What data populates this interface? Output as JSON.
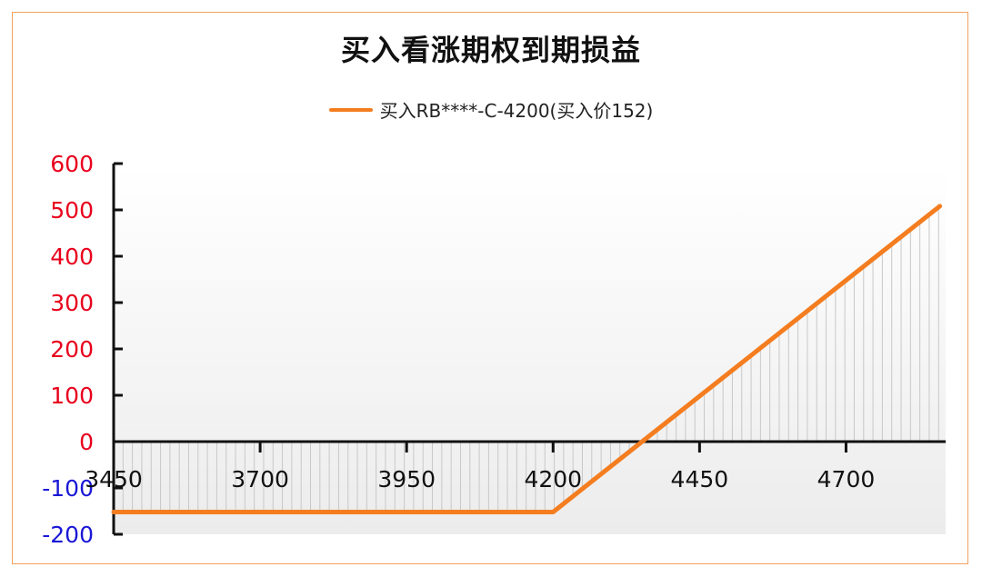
{
  "title": "买入看涨期权到期损益",
  "legend": {
    "label": "买入RB****-C-4200(买入价152)"
  },
  "colors": {
    "line": "#f47d20",
    "frame": "#f2a25f",
    "positive_tick": "#e8001c",
    "negative_tick": "#1a17d6",
    "hatch": "#c8c8c8"
  },
  "chart_data": {
    "type": "line",
    "title": "买入看涨期权到期损益",
    "xlabel": "",
    "ylabel": "",
    "xlim": [
      3450,
      4870
    ],
    "ylim": [
      -200,
      600
    ],
    "x_ticks": [
      "3450",
      "3700",
      "3950",
      "4200",
      "4450",
      "4700"
    ],
    "y_ticks": [
      "600",
      "500",
      "400",
      "300",
      "200",
      "100",
      "0",
      "-100",
      "-200"
    ],
    "series": [
      {
        "name": "买入RB****-C-4200(买入价152)",
        "x": [
          3450,
          4200,
          4352,
          4860
        ],
        "y": [
          -152,
          -152,
          0,
          508
        ]
      }
    ],
    "grid": false,
    "legend_position": "top"
  }
}
